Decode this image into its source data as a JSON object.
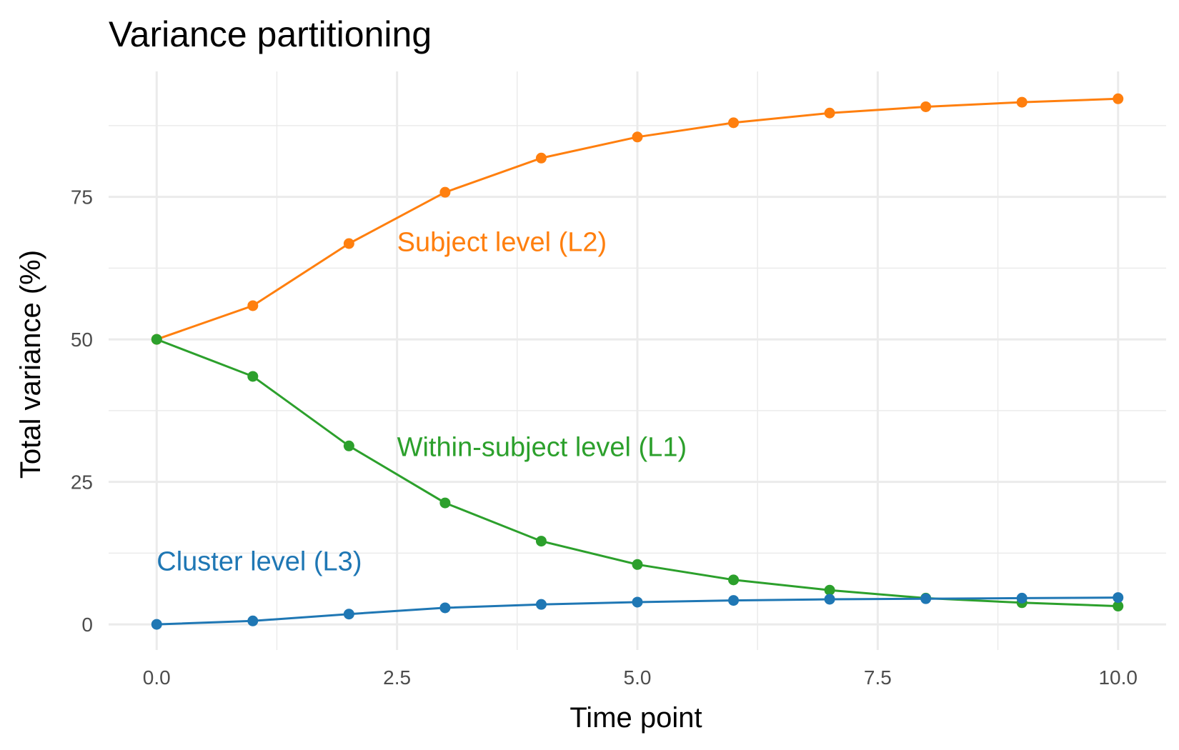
{
  "chart_data": {
    "type": "line",
    "title": "Variance partitioning",
    "xlabel": "Time point",
    "ylabel": "Total variance (%)",
    "xlim": [
      -0.5,
      10.5
    ],
    "ylim": [
      -4.5,
      97
    ],
    "x_ticks": [
      0.0,
      2.5,
      5.0,
      7.5,
      10.0
    ],
    "x_tick_labels": [
      "0.0",
      "2.5",
      "5.0",
      "7.5",
      "10.0"
    ],
    "y_ticks": [
      0,
      25,
      50,
      75
    ],
    "y_tick_labels": [
      "0",
      "25",
      "50",
      "75"
    ],
    "x_minor_ticks": [
      1.25,
      3.75,
      6.25,
      8.75
    ],
    "y_minor_ticks": [
      12.5,
      37.5,
      62.5,
      87.5
    ],
    "grid": true,
    "legend": "none (direct labels)",
    "x": [
      0,
      1,
      2,
      3,
      4,
      5,
      6,
      7,
      8,
      9,
      10
    ],
    "series": [
      {
        "name": "Subject level (L2)",
        "color": "#ff7f0e",
        "values": [
          50.0,
          55.9,
          66.8,
          75.8,
          81.8,
          85.5,
          88.0,
          89.7,
          90.8,
          91.6,
          92.2
        ],
        "label_x": 2.5,
        "label_y": 65.5
      },
      {
        "name": "Within-subject level (L1)",
        "color": "#2ca02c",
        "values": [
          50.0,
          43.5,
          31.3,
          21.3,
          14.6,
          10.5,
          7.8,
          6.0,
          4.6,
          3.8,
          3.2
        ],
        "label_x": 2.5,
        "label_y": 29.5
      },
      {
        "name": "Cluster level (L3)",
        "color": "#1f77b4",
        "values": [
          0.0,
          0.6,
          1.8,
          2.9,
          3.5,
          3.9,
          4.2,
          4.4,
          4.5,
          4.6,
          4.7
        ],
        "label_x": 0.0,
        "label_y": 9.5
      }
    ]
  }
}
